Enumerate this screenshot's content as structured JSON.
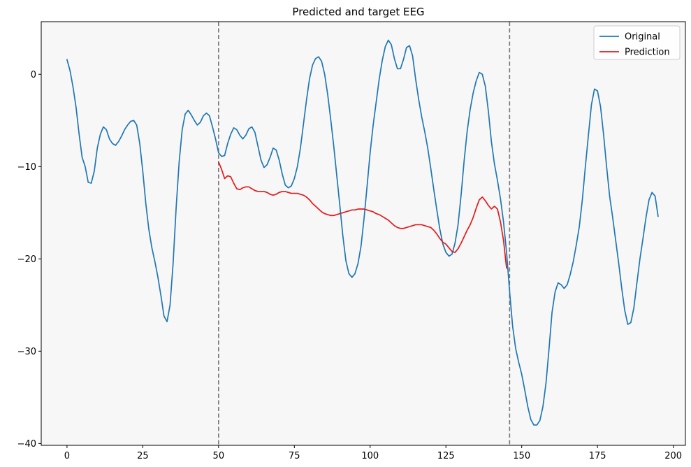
{
  "chart_data": {
    "type": "line",
    "title": "Predicted and target EEG",
    "xlabel": "",
    "ylabel": "",
    "xlim": [
      -8.5,
      204
    ],
    "ylim": [
      -40.2,
      5.7
    ],
    "xticks": [
      0,
      25,
      50,
      75,
      100,
      125,
      150,
      175,
      200
    ],
    "yticks": [
      0,
      -10,
      -20,
      -30,
      -40
    ],
    "grid": false,
    "background_color": "#f7f7f7",
    "legend_position": "top-right",
    "vlines": [
      {
        "x": 50,
        "color": "#777777",
        "style": "dashed"
      },
      {
        "x": 146,
        "color": "#777777",
        "style": "dashed"
      }
    ],
    "series": [
      {
        "name": "Original",
        "color": "#1f77b4",
        "points": [
          [
            0,
            1.6
          ],
          [
            1,
            0.4
          ],
          [
            2,
            -1.4
          ],
          [
            3,
            -3.6
          ],
          [
            4,
            -6.5
          ],
          [
            5,
            -9.0
          ],
          [
            6,
            -10.0
          ],
          [
            7,
            -11.7
          ],
          [
            8,
            -11.8
          ],
          [
            9,
            -10.5
          ],
          [
            10,
            -8.0
          ],
          [
            11,
            -6.5
          ],
          [
            12,
            -5.7
          ],
          [
            13,
            -6.0
          ],
          [
            14,
            -7.0
          ],
          [
            15,
            -7.5
          ],
          [
            16,
            -7.7
          ],
          [
            17,
            -7.3
          ],
          [
            18,
            -6.7
          ],
          [
            19,
            -6.0
          ],
          [
            20,
            -5.5
          ],
          [
            21,
            -5.1
          ],
          [
            22,
            -5.0
          ],
          [
            23,
            -5.5
          ],
          [
            24,
            -7.5
          ],
          [
            25,
            -10.5
          ],
          [
            26,
            -14.0
          ],
          [
            27,
            -16.8
          ],
          [
            28,
            -18.8
          ],
          [
            29,
            -20.3
          ],
          [
            30,
            -22.0
          ],
          [
            31,
            -24.0
          ],
          [
            32,
            -26.2
          ],
          [
            33,
            -26.8
          ],
          [
            34,
            -25.0
          ],
          [
            35,
            -20.5
          ],
          [
            36,
            -14.5
          ],
          [
            37,
            -9.5
          ],
          [
            38,
            -6.0
          ],
          [
            39,
            -4.3
          ],
          [
            40,
            -3.9
          ],
          [
            41,
            -4.4
          ],
          [
            42,
            -5.0
          ],
          [
            43,
            -5.5
          ],
          [
            44,
            -5.2
          ],
          [
            45,
            -4.5
          ],
          [
            46,
            -4.2
          ],
          [
            47,
            -4.5
          ],
          [
            48,
            -5.7
          ],
          [
            49,
            -7.0
          ],
          [
            50,
            -8.5
          ],
          [
            51,
            -8.9
          ],
          [
            52,
            -8.8
          ],
          [
            53,
            -7.5
          ],
          [
            54,
            -6.5
          ],
          [
            55,
            -5.8
          ],
          [
            56,
            -6.0
          ],
          [
            57,
            -6.6
          ],
          [
            58,
            -7.0
          ],
          [
            59,
            -6.6
          ],
          [
            60,
            -5.9
          ],
          [
            61,
            -5.7
          ],
          [
            62,
            -6.3
          ],
          [
            63,
            -7.8
          ],
          [
            64,
            -9.3
          ],
          [
            65,
            -10.1
          ],
          [
            66,
            -9.8
          ],
          [
            67,
            -9.0
          ],
          [
            68,
            -8.0
          ],
          [
            69,
            -8.2
          ],
          [
            70,
            -9.3
          ],
          [
            71,
            -10.8
          ],
          [
            72,
            -12.0
          ],
          [
            73,
            -12.3
          ],
          [
            74,
            -12.1
          ],
          [
            75,
            -11.3
          ],
          [
            76,
            -10.0
          ],
          [
            77,
            -8.0
          ],
          [
            78,
            -5.4
          ],
          [
            79,
            -2.8
          ],
          [
            80,
            -0.5
          ],
          [
            81,
            1.0
          ],
          [
            82,
            1.7
          ],
          [
            83,
            1.9
          ],
          [
            84,
            1.4
          ],
          [
            85,
            0.0
          ],
          [
            86,
            -2.2
          ],
          [
            87,
            -4.9
          ],
          [
            88,
            -7.8
          ],
          [
            89,
            -11.0
          ],
          [
            90,
            -14.2
          ],
          [
            91,
            -17.5
          ],
          [
            92,
            -20.2
          ],
          [
            93,
            -21.6
          ],
          [
            94,
            -22.0
          ],
          [
            95,
            -21.6
          ],
          [
            96,
            -20.5
          ],
          [
            97,
            -18.6
          ],
          [
            98,
            -15.6
          ],
          [
            99,
            -12.1
          ],
          [
            100,
            -8.5
          ],
          [
            101,
            -5.5
          ],
          [
            102,
            -3.0
          ],
          [
            103,
            -0.5
          ],
          [
            104,
            1.5
          ],
          [
            105,
            3.0
          ],
          [
            106,
            3.7
          ],
          [
            107,
            3.2
          ],
          [
            108,
            1.7
          ],
          [
            109,
            0.6
          ],
          [
            110,
            0.6
          ],
          [
            111,
            1.6
          ],
          [
            112,
            2.9
          ],
          [
            113,
            3.1
          ],
          [
            114,
            2.0
          ],
          [
            115,
            -0.5
          ],
          [
            116,
            -2.7
          ],
          [
            117,
            -4.6
          ],
          [
            118,
            -6.2
          ],
          [
            119,
            -8.0
          ],
          [
            120,
            -10.2
          ],
          [
            121,
            -12.5
          ],
          [
            122,
            -14.7
          ],
          [
            123,
            -16.8
          ],
          [
            124,
            -18.4
          ],
          [
            125,
            -19.3
          ],
          [
            126,
            -19.7
          ],
          [
            127,
            -19.5
          ],
          [
            128,
            -18.3
          ],
          [
            129,
            -16.3
          ],
          [
            130,
            -13.1
          ],
          [
            131,
            -9.4
          ],
          [
            132,
            -6.2
          ],
          [
            133,
            -3.8
          ],
          [
            134,
            -2.0
          ],
          [
            135,
            -0.7
          ],
          [
            136,
            0.2
          ],
          [
            137,
            0.0
          ],
          [
            138,
            -1.3
          ],
          [
            139,
            -4.0
          ],
          [
            140,
            -7.3
          ],
          [
            141,
            -9.7
          ],
          [
            142,
            -11.5
          ],
          [
            143,
            -13.5
          ],
          [
            144,
            -16.0
          ],
          [
            145,
            -19.3
          ],
          [
            146,
            -23.5
          ],
          [
            147,
            -27.3
          ],
          [
            148,
            -29.7
          ],
          [
            149,
            -31.2
          ],
          [
            150,
            -32.5
          ],
          [
            151,
            -34.2
          ],
          [
            152,
            -36.0
          ],
          [
            153,
            -37.4
          ],
          [
            154,
            -38.0
          ],
          [
            155,
            -38.0
          ],
          [
            156,
            -37.5
          ],
          [
            157,
            -36.0
          ],
          [
            158,
            -33.5
          ],
          [
            159,
            -29.8
          ],
          [
            160,
            -25.8
          ],
          [
            161,
            -23.6
          ],
          [
            162,
            -22.6
          ],
          [
            163,
            -22.8
          ],
          [
            164,
            -23.2
          ],
          [
            165,
            -22.8
          ],
          [
            166,
            -21.7
          ],
          [
            167,
            -20.3
          ],
          [
            168,
            -18.5
          ],
          [
            169,
            -16.5
          ],
          [
            170,
            -13.6
          ],
          [
            171,
            -10.0
          ],
          [
            172,
            -6.6
          ],
          [
            173,
            -3.3
          ],
          [
            174,
            -1.6
          ],
          [
            175,
            -1.8
          ],
          [
            176,
            -3.5
          ],
          [
            177,
            -6.5
          ],
          [
            178,
            -10.0
          ],
          [
            179,
            -13.2
          ],
          [
            180,
            -15.5
          ],
          [
            181,
            -18.0
          ],
          [
            182,
            -20.5
          ],
          [
            183,
            -23.2
          ],
          [
            184,
            -25.6
          ],
          [
            185,
            -27.1
          ],
          [
            186,
            -26.9
          ],
          [
            187,
            -25.3
          ],
          [
            188,
            -22.6
          ],
          [
            189,
            -20.0
          ],
          [
            190,
            -17.8
          ],
          [
            191,
            -15.5
          ],
          [
            192,
            -13.6
          ],
          [
            193,
            -12.8
          ],
          [
            194,
            -13.2
          ],
          [
            195,
            -15.4
          ]
        ]
      },
      {
        "name": "Prediction",
        "color": "#e31a1c",
        "points": [
          [
            50,
            -9.5
          ],
          [
            51,
            -10.3
          ],
          [
            52,
            -11.3
          ],
          [
            53,
            -11.0
          ],
          [
            54,
            -11.1
          ],
          [
            55,
            -11.8
          ],
          [
            56,
            -12.4
          ],
          [
            57,
            -12.5
          ],
          [
            58,
            -12.3
          ],
          [
            59,
            -12.2
          ],
          [
            60,
            -12.2
          ],
          [
            61,
            -12.4
          ],
          [
            62,
            -12.6
          ],
          [
            63,
            -12.7
          ],
          [
            64,
            -12.7
          ],
          [
            65,
            -12.7
          ],
          [
            66,
            -12.8
          ],
          [
            67,
            -13.0
          ],
          [
            68,
            -13.1
          ],
          [
            69,
            -13.0
          ],
          [
            70,
            -12.8
          ],
          [
            71,
            -12.7
          ],
          [
            72,
            -12.7
          ],
          [
            73,
            -12.8
          ],
          [
            74,
            -12.9
          ],
          [
            75,
            -12.9
          ],
          [
            76,
            -12.9
          ],
          [
            77,
            -13.0
          ],
          [
            78,
            -13.1
          ],
          [
            79,
            -13.3
          ],
          [
            80,
            -13.6
          ],
          [
            81,
            -14.0
          ],
          [
            82,
            -14.3
          ],
          [
            83,
            -14.6
          ],
          [
            84,
            -14.9
          ],
          [
            85,
            -15.1
          ],
          [
            86,
            -15.2
          ],
          [
            87,
            -15.3
          ],
          [
            88,
            -15.3
          ],
          [
            89,
            -15.2
          ],
          [
            90,
            -15.1
          ],
          [
            91,
            -15.0
          ],
          [
            92,
            -14.9
          ],
          [
            93,
            -14.8
          ],
          [
            94,
            -14.7
          ],
          [
            95,
            -14.7
          ],
          [
            96,
            -14.6
          ],
          [
            97,
            -14.6
          ],
          [
            98,
            -14.6
          ],
          [
            99,
            -14.7
          ],
          [
            100,
            -14.8
          ],
          [
            101,
            -14.9
          ],
          [
            102,
            -15.1
          ],
          [
            103,
            -15.2
          ],
          [
            104,
            -15.4
          ],
          [
            105,
            -15.6
          ],
          [
            106,
            -15.8
          ],
          [
            107,
            -16.1
          ],
          [
            108,
            -16.4
          ],
          [
            109,
            -16.6
          ],
          [
            110,
            -16.7
          ],
          [
            111,
            -16.7
          ],
          [
            112,
            -16.6
          ],
          [
            113,
            -16.5
          ],
          [
            114,
            -16.4
          ],
          [
            115,
            -16.3
          ],
          [
            116,
            -16.3
          ],
          [
            117,
            -16.3
          ],
          [
            118,
            -16.4
          ],
          [
            119,
            -16.5
          ],
          [
            120,
            -16.6
          ],
          [
            121,
            -16.9
          ],
          [
            122,
            -17.3
          ],
          [
            123,
            -17.8
          ],
          [
            124,
            -18.2
          ],
          [
            125,
            -18.4
          ],
          [
            126,
            -18.8
          ],
          [
            127,
            -19.2
          ],
          [
            128,
            -19.3
          ],
          [
            129,
            -18.9
          ],
          [
            130,
            -18.3
          ],
          [
            131,
            -17.6
          ],
          [
            132,
            -16.9
          ],
          [
            133,
            -16.3
          ],
          [
            134,
            -15.5
          ],
          [
            135,
            -14.5
          ],
          [
            136,
            -13.6
          ],
          [
            137,
            -13.3
          ],
          [
            138,
            -13.7
          ],
          [
            139,
            -14.2
          ],
          [
            140,
            -14.6
          ],
          [
            141,
            -14.3
          ],
          [
            142,
            -14.6
          ],
          [
            143,
            -16.0
          ],
          [
            144,
            -18.0
          ],
          [
            145,
            -21.0
          ]
        ]
      }
    ]
  }
}
